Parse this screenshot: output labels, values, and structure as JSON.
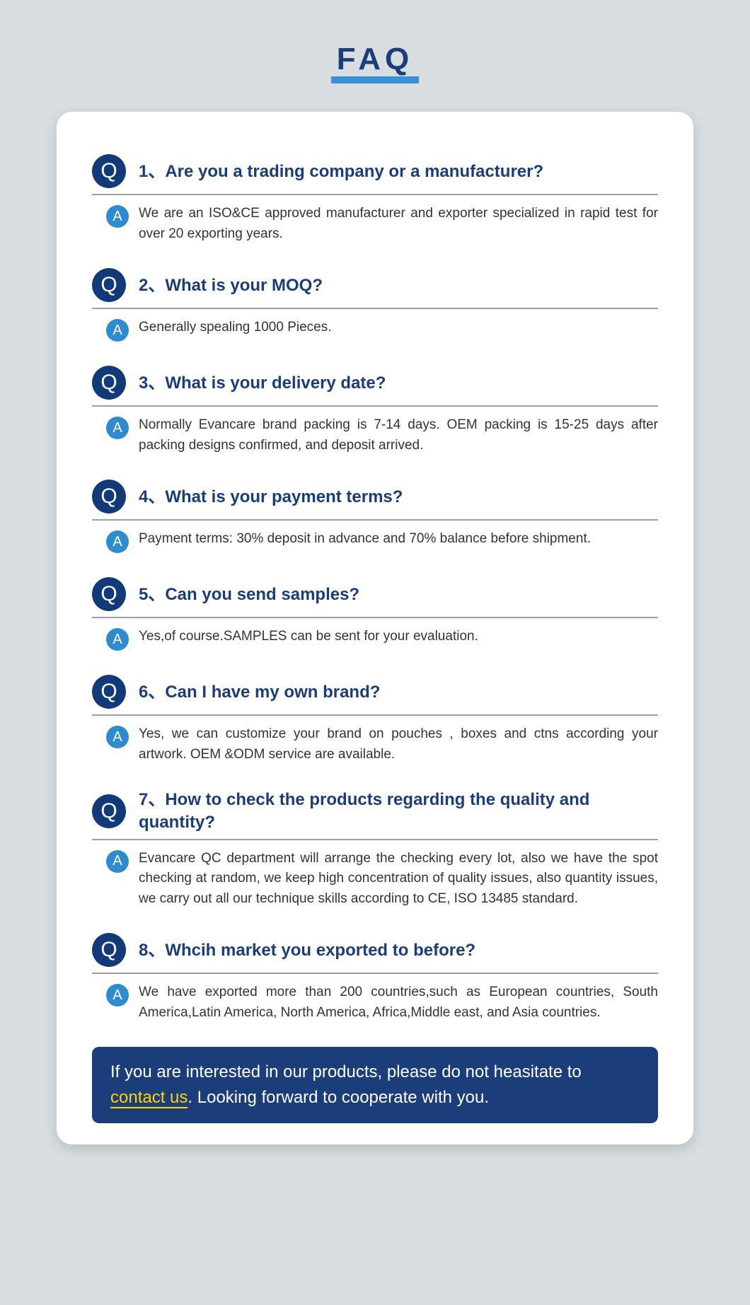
{
  "title": "FAQ",
  "colors": {
    "page_bg": "#d8dde2",
    "card_bg": "#ffffff",
    "heading_color": "#1b3d7a",
    "heading_underline": "#3a8fd6",
    "q_badge_bg": "#123a78",
    "a_badge_bg": "#2f8bd0",
    "badge_text": "#ffffff",
    "answer_text": "#333333",
    "divider": "#9aa0a6",
    "cta_bg": "#1b3d7a",
    "cta_text": "#ffffff",
    "cta_highlight": "#ffd400"
  },
  "typography": {
    "title_fontsize": 44,
    "question_fontsize": 24,
    "answer_fontsize": 19,
    "cta_fontsize": 24
  },
  "badges": {
    "q_letter": "Q",
    "a_letter": "A"
  },
  "faq": [
    {
      "q": "1、Are you a trading company or a manufacturer?",
      "a": "We are an ISO&CE approved manufacturer and exporter specialized in rapid test for over 20 exporting years."
    },
    {
      "q": "2、What is your MOQ?",
      "a": "Generally spealing 1000 Pieces."
    },
    {
      "q": "3、What is your delivery date?",
      "a": "Normally Evancare brand packing is 7-14 days.  OEM packing is 15-25 days after packing designs confirmed, and deposit arrived."
    },
    {
      "q": "4、What is your payment terms?",
      "a": "Payment terms: 30% deposit in advance and 70% balance before shipment."
    },
    {
      "q": "5、Can you send samples?",
      "a": "Yes,of course.SAMPLES can be sent for your evaluation."
    },
    {
      "q": "6、Can I have my own brand?",
      "a": "Yes, we can customize your brand on pouches , boxes and ctns according your artwork.  OEM &ODM service are available."
    },
    {
      "q": "7、How to check the products regarding the quality and quantity?",
      "a": "Evancare QC department will arrange the checking every lot, also we have the spot checking at random, we keep high concentration of quality issues, also quantity issues,  we carry out all our technique skills according to  CE, ISO 13485 standard."
    },
    {
      "q": "8、Whcih market you exported to before?",
      "a": "We have exported more than 200 countries,such as European countries, South America,Latin America, North America, Africa,Middle east, and Asia countries."
    }
  ],
  "cta": {
    "pre": "If you are interested in our products, please do not heasitate to ",
    "link": "contact us",
    "post": ". Looking forward to cooperate with you."
  }
}
